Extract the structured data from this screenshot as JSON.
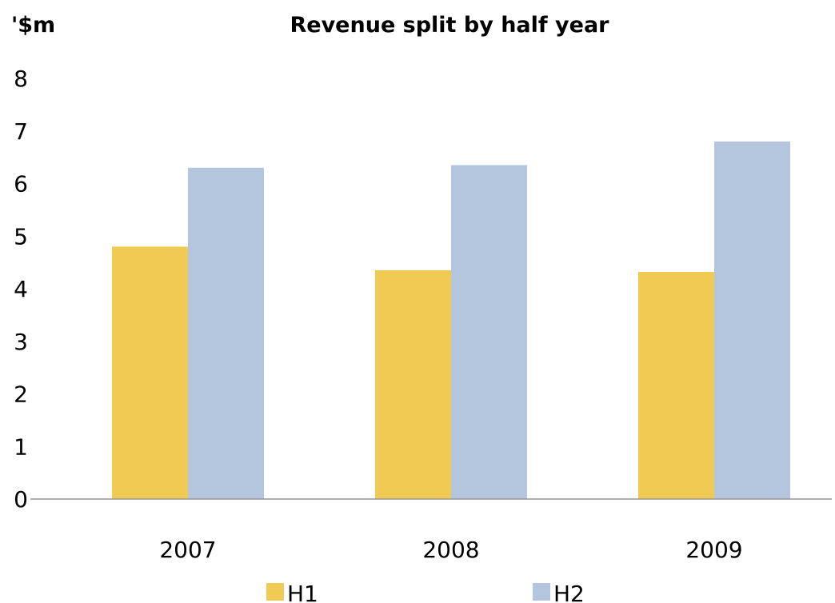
{
  "chart_data": {
    "type": "bar",
    "title": "Revenue split by half year",
    "ylabel": "'$m",
    "xlabel": "",
    "categories": [
      "2007",
      "2008",
      "2009"
    ],
    "series": [
      {
        "name": "H1",
        "values": [
          4.8,
          4.35,
          4.32
        ],
        "color": "#F0CA52"
      },
      {
        "name": "H2",
        "values": [
          6.3,
          6.35,
          6.8
        ],
        "color": "#B4C5DE"
      }
    ],
    "ylim": [
      0,
      8
    ],
    "yticks": [
      "0",
      "1",
      "2",
      "3",
      "4",
      "5",
      "6",
      "7",
      "8"
    ],
    "grid": false,
    "legend": "bottom-center",
    "axis_color": "#999999"
  }
}
